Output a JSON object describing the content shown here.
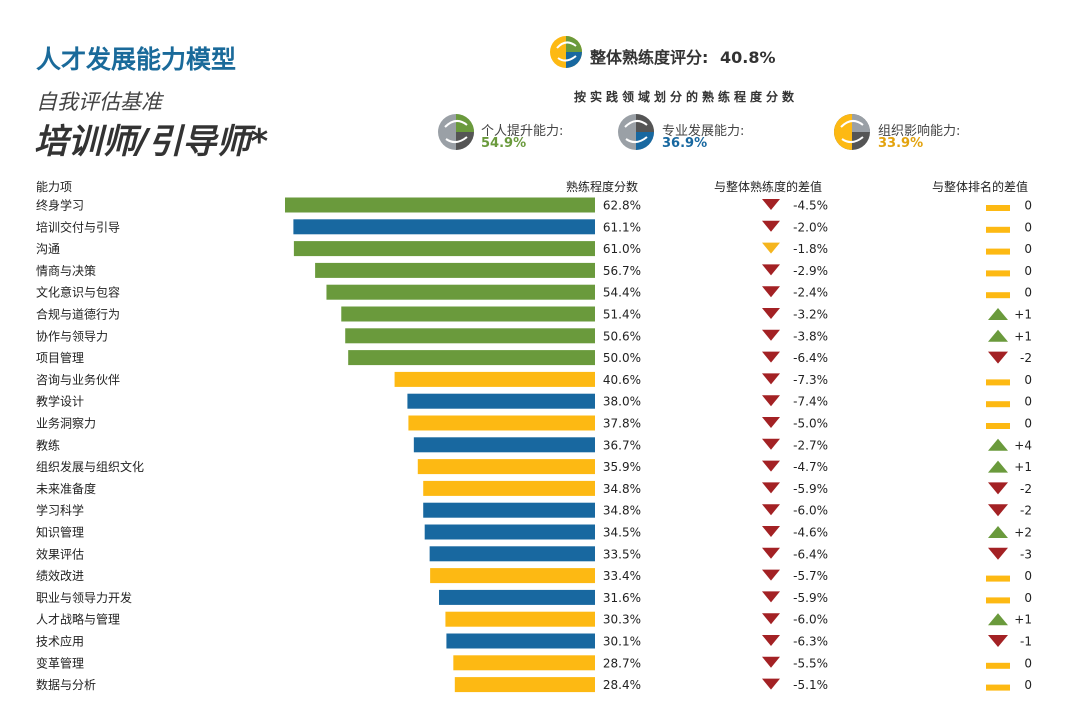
{
  "header": {
    "title": "人才发展能力模型",
    "subtitle": "自我评估基准",
    "role": "培训师/引导师*"
  },
  "overall": {
    "label": "整体熟练度评分:",
    "value": "40.8%"
  },
  "domains": {
    "heading": "按实践领域划分的熟练程度分数",
    "items": [
      {
        "label": "个人提升能力:",
        "value": "54.9%",
        "color": "#6a9a3c"
      },
      {
        "label": "专业发展能力:",
        "value": "36.9%",
        "color": "#1868a0"
      },
      {
        "label": "组织影响能力:",
        "value": "33.9%",
        "color": "#f5b51e"
      }
    ]
  },
  "colors": {
    "personal": "#6a9a3c",
    "professional": "#1868a0",
    "organizational": "#fdb913",
    "down": "#a32124",
    "warn": "#f5b51e",
    "up": "#6a9a3c",
    "neutral": "#fdb913",
    "icon_dark": "#555555",
    "icon_gray": "#9aa0a6"
  },
  "chart_data": {
    "type": "bar",
    "orientation": "horizontal",
    "columns": {
      "category": "能力项",
      "score": "熟练程度分数",
      "diff_overall": "与整体熟练度的差值",
      "diff_rank": "与整体排名的差值"
    },
    "xlim": [
      0,
      65
    ],
    "rows": [
      {
        "name": "终身学习",
        "value": 62.8,
        "label": "62.8%",
        "domain": "personal",
        "diff": "-4.5%",
        "diff_dir": "down",
        "rank": "0",
        "rank_dir": "same"
      },
      {
        "name": "培训交付与引导",
        "value": 61.1,
        "label": "61.1%",
        "domain": "professional",
        "diff": "-2.0%",
        "diff_dir": "down",
        "rank": "0",
        "rank_dir": "same"
      },
      {
        "name": "沟通",
        "value": 61.0,
        "label": "61.0%",
        "domain": "personal",
        "diff": "-1.8%",
        "diff_dir": "warn",
        "rank": "0",
        "rank_dir": "same"
      },
      {
        "name": "情商与决策",
        "value": 56.7,
        "label": "56.7%",
        "domain": "personal",
        "diff": "-2.9%",
        "diff_dir": "down",
        "rank": "0",
        "rank_dir": "same"
      },
      {
        "name": "文化意识与包容",
        "value": 54.4,
        "label": "54.4%",
        "domain": "personal",
        "diff": "-2.4%",
        "diff_dir": "down",
        "rank": "0",
        "rank_dir": "same"
      },
      {
        "name": "合规与道德行为",
        "value": 51.4,
        "label": "51.4%",
        "domain": "personal",
        "diff": "-3.2%",
        "diff_dir": "down",
        "rank": "+1",
        "rank_dir": "up"
      },
      {
        "name": "协作与领导力",
        "value": 50.6,
        "label": "50.6%",
        "domain": "personal",
        "diff": "-3.8%",
        "diff_dir": "down",
        "rank": "+1",
        "rank_dir": "up"
      },
      {
        "name": "项目管理",
        "value": 50.0,
        "label": "50.0%",
        "domain": "personal",
        "diff": "-6.4%",
        "diff_dir": "down",
        "rank": "-2",
        "rank_dir": "down"
      },
      {
        "name": "咨询与业务伙伴",
        "value": 40.6,
        "label": "40.6%",
        "domain": "organizational",
        "diff": "-7.3%",
        "diff_dir": "down",
        "rank": "0",
        "rank_dir": "same"
      },
      {
        "name": "教学设计",
        "value": 38.0,
        "label": "38.0%",
        "domain": "professional",
        "diff": "-7.4%",
        "diff_dir": "down",
        "rank": "0",
        "rank_dir": "same"
      },
      {
        "name": "业务洞察力",
        "value": 37.8,
        "label": "37.8%",
        "domain": "organizational",
        "diff": "-5.0%",
        "diff_dir": "down",
        "rank": "0",
        "rank_dir": "same"
      },
      {
        "name": "教练",
        "value": 36.7,
        "label": "36.7%",
        "domain": "professional",
        "diff": "-2.7%",
        "diff_dir": "down",
        "rank": "+4",
        "rank_dir": "up"
      },
      {
        "name": "组织发展与组织文化",
        "value": 35.9,
        "label": "35.9%",
        "domain": "organizational",
        "diff": "-4.7%",
        "diff_dir": "down",
        "rank": "+1",
        "rank_dir": "up"
      },
      {
        "name": "未来准备度",
        "value": 34.8,
        "label": "34.8%",
        "domain": "organizational",
        "diff": "-5.9%",
        "diff_dir": "down",
        "rank": "-2",
        "rank_dir": "down"
      },
      {
        "name": "学习科学",
        "value": 34.8,
        "label": "34.8%",
        "domain": "professional",
        "diff": "-6.0%",
        "diff_dir": "down",
        "rank": "-2",
        "rank_dir": "down"
      },
      {
        "name": "知识管理",
        "value": 34.5,
        "label": "34.5%",
        "domain": "professional",
        "diff": "-4.6%",
        "diff_dir": "down",
        "rank": "+2",
        "rank_dir": "up"
      },
      {
        "name": "效果评估",
        "value": 33.5,
        "label": "33.5%",
        "domain": "professional",
        "diff": "-6.4%",
        "diff_dir": "down",
        "rank": "-3",
        "rank_dir": "down"
      },
      {
        "name": "绩效改进",
        "value": 33.4,
        "label": "33.4%",
        "domain": "organizational",
        "diff": "-5.7%",
        "diff_dir": "down",
        "rank": "0",
        "rank_dir": "same"
      },
      {
        "name": "职业与领导力开发",
        "value": 31.6,
        "label": "31.6%",
        "domain": "professional",
        "diff": "-5.9%",
        "diff_dir": "down",
        "rank": "0",
        "rank_dir": "same"
      },
      {
        "name": "人才战略与管理",
        "value": 30.3,
        "label": "30.3%",
        "domain": "organizational",
        "diff": "-6.0%",
        "diff_dir": "down",
        "rank": "+1",
        "rank_dir": "up"
      },
      {
        "name": "技术应用",
        "value": 30.1,
        "label": "30.1%",
        "domain": "professional",
        "diff": "-6.3%",
        "diff_dir": "down",
        "rank": "-1",
        "rank_dir": "down"
      },
      {
        "name": "变革管理",
        "value": 28.7,
        "label": "28.7%",
        "domain": "organizational",
        "diff": "-5.5%",
        "diff_dir": "down",
        "rank": "0",
        "rank_dir": "same"
      },
      {
        "name": "数据与分析",
        "value": 28.4,
        "label": "28.4%",
        "domain": "organizational",
        "diff": "-5.1%",
        "diff_dir": "down",
        "rank": "0",
        "rank_dir": "same"
      }
    ]
  }
}
